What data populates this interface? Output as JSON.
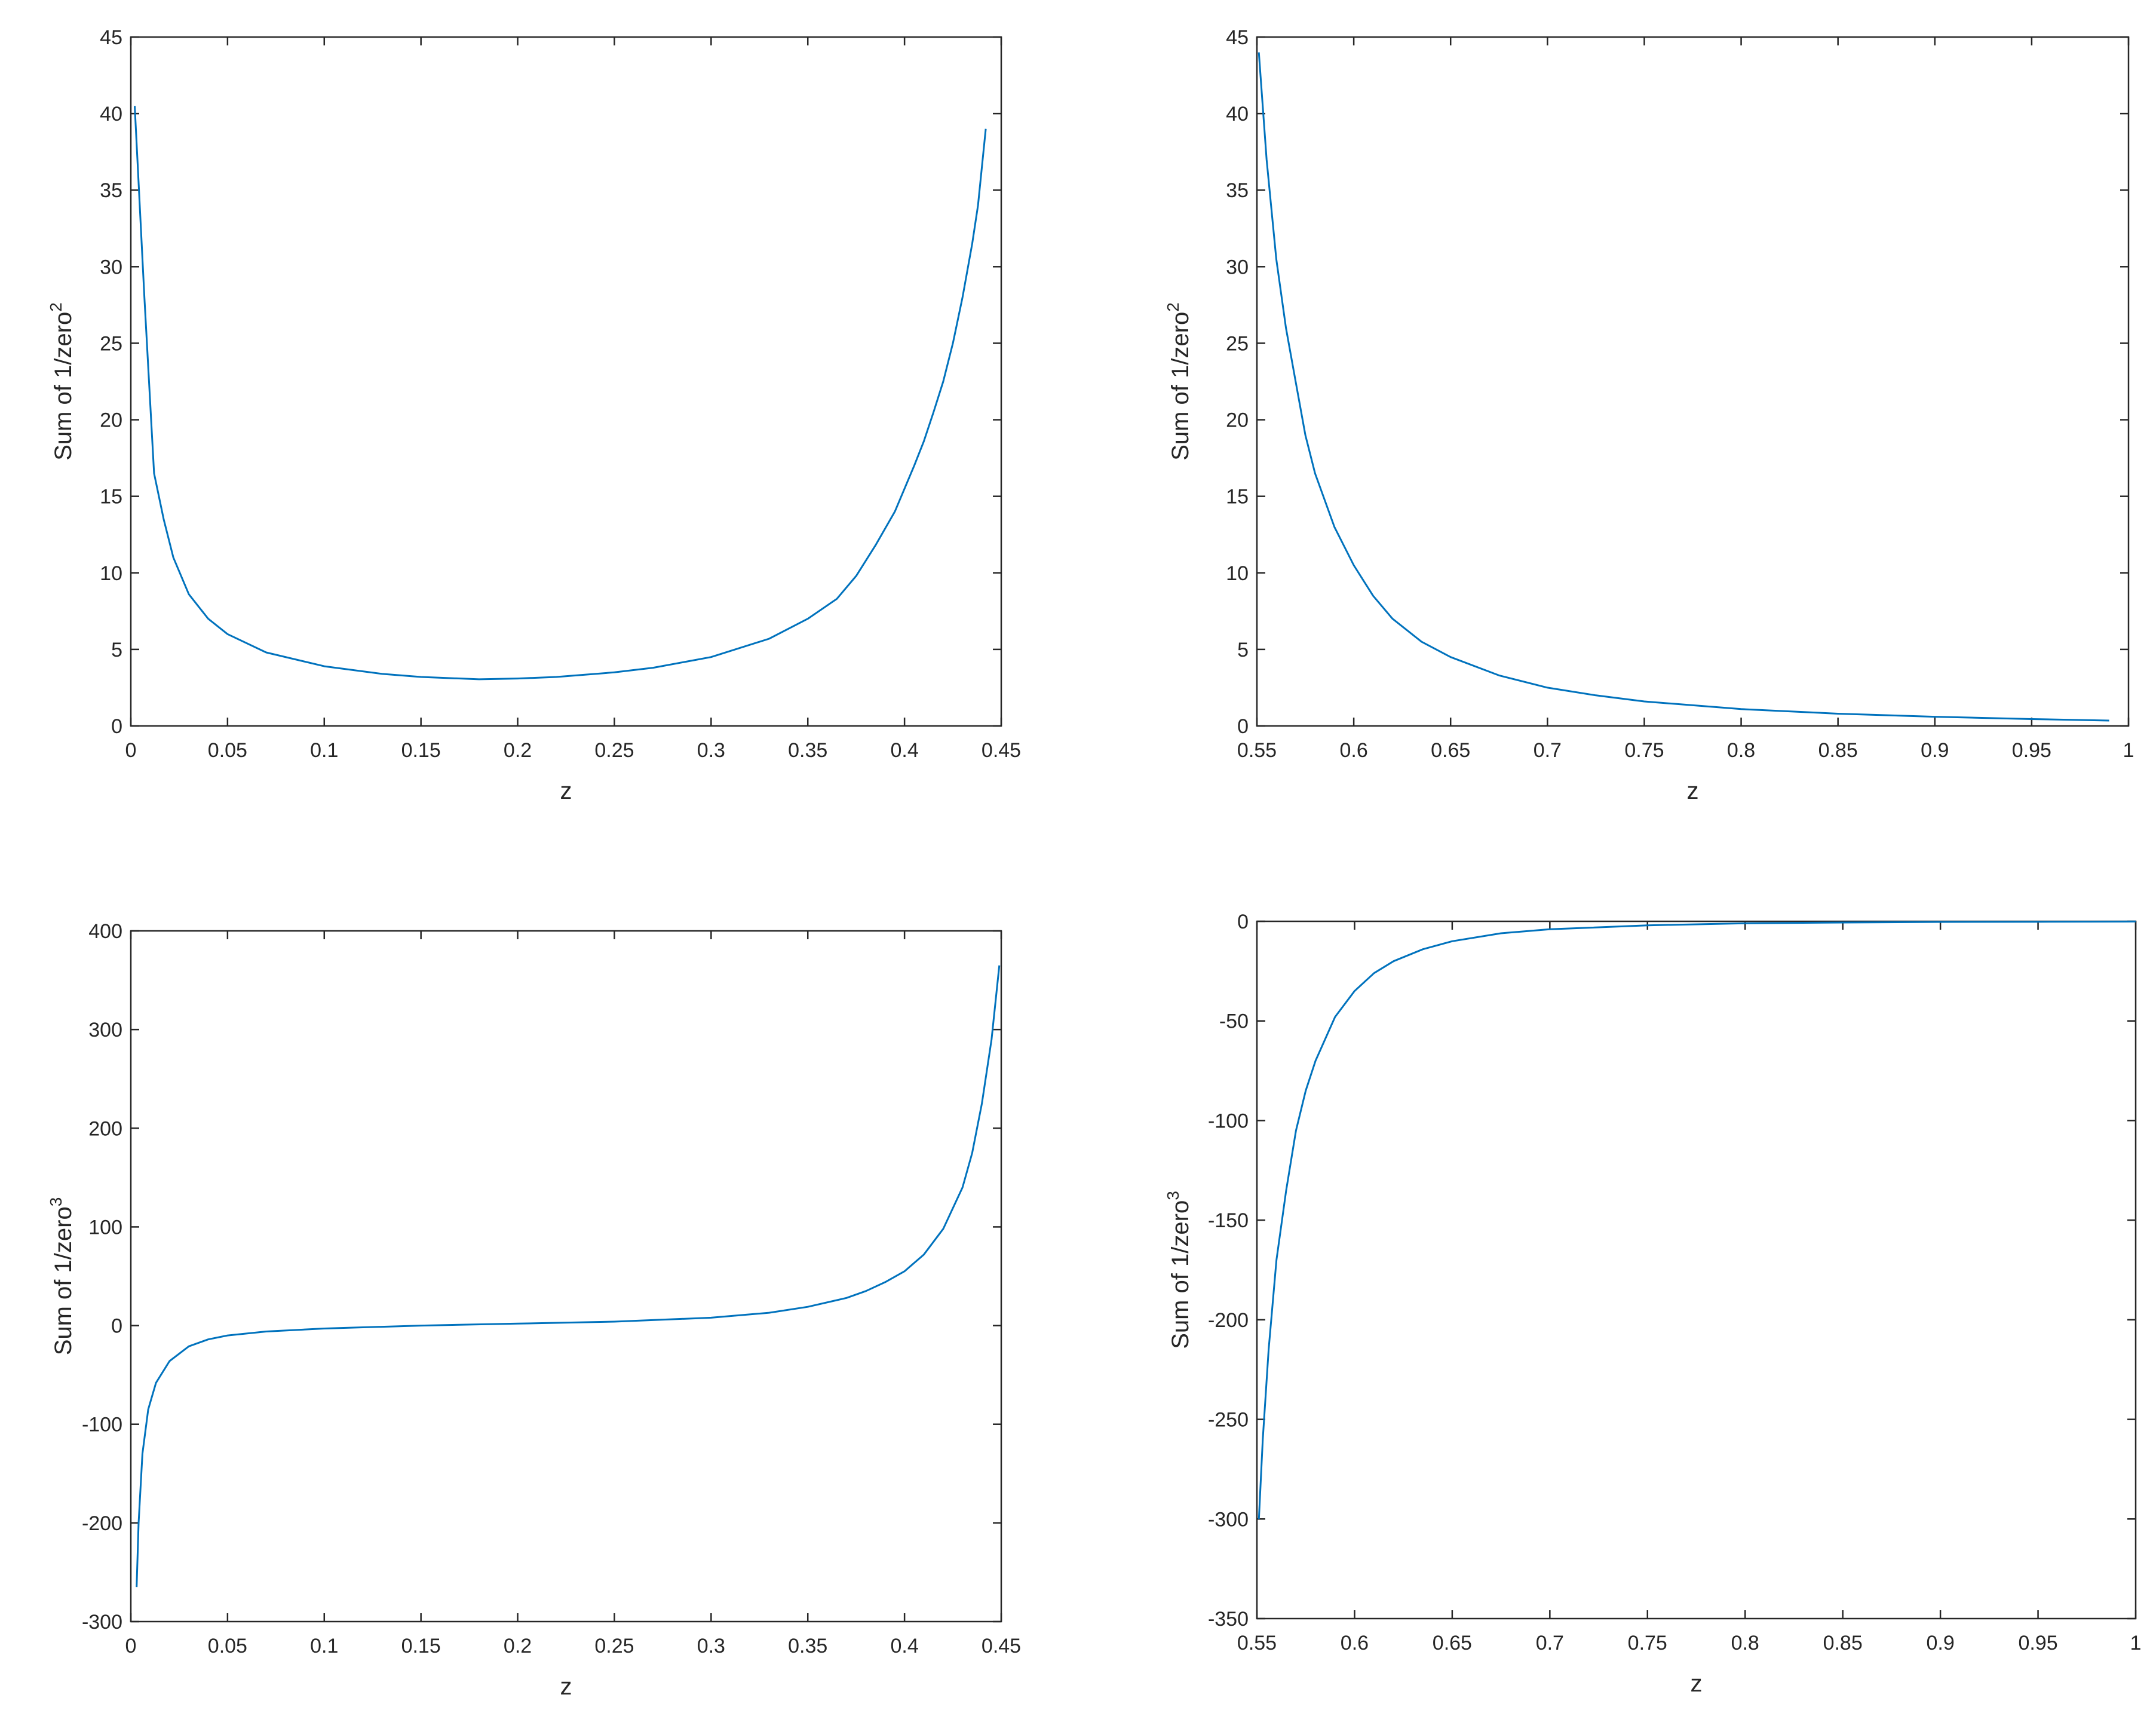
{
  "chart_data": [
    {
      "type": "line",
      "xlabel": "z",
      "ylabel": "Sum of 1/zero",
      "ylabel_sup": "2",
      "xlim": [
        0,
        0.45
      ],
      "ylim": [
        0,
        45
      ],
      "xticks": [
        "0",
        "0.05",
        "0.1",
        "0.15",
        "0.2",
        "0.25",
        "0.3",
        "0.35",
        "0.4",
        "0.45"
      ],
      "yticks": [
        "0",
        "5",
        "10",
        "15",
        "20",
        "25",
        "30",
        "35",
        "40",
        "45"
      ],
      "grid": false,
      "color": "#0072BD",
      "series": [
        {
          "x": [
            0.002,
            0.007,
            0.012,
            0.017,
            0.022,
            0.03,
            0.04,
            0.05,
            0.07,
            0.1,
            0.13,
            0.15,
            0.18,
            0.2,
            0.22,
            0.25,
            0.27,
            0.3,
            0.33,
            0.35,
            0.365,
            0.375,
            0.385,
            0.395,
            0.405,
            0.41,
            0.415,
            0.42,
            0.425,
            0.43,
            0.435,
            0.438,
            0.442
          ],
          "y": [
            40.5,
            28,
            16.5,
            13.5,
            11,
            8.6,
            7,
            6,
            4.8,
            3.9,
            3.4,
            3.2,
            3.05,
            3.1,
            3.2,
            3.5,
            3.8,
            4.5,
            5.7,
            7,
            8.3,
            9.8,
            11.8,
            14,
            17,
            18.6,
            20.5,
            22.5,
            25,
            28,
            31.5,
            34,
            39
          ]
        }
      ]
    },
    {
      "type": "line",
      "xlabel": "z",
      "ylabel": "Sum of 1/zero",
      "ylabel_sup": "2",
      "xlim": [
        0.55,
        1
      ],
      "ylim": [
        0,
        45
      ],
      "xticks": [
        "0.55",
        "0.6",
        "0.65",
        "0.7",
        "0.75",
        "0.8",
        "0.85",
        "0.9",
        "0.95",
        "1"
      ],
      "yticks": [
        "0",
        "5",
        "10",
        "15",
        "20",
        "25",
        "30",
        "35",
        "40",
        "45"
      ],
      "grid": false,
      "color": "#0072BD",
      "series": [
        {
          "x": [
            0.551,
            0.555,
            0.56,
            0.565,
            0.57,
            0.575,
            0.58,
            0.59,
            0.6,
            0.61,
            0.62,
            0.635,
            0.65,
            0.675,
            0.7,
            0.725,
            0.75,
            0.8,
            0.85,
            0.9,
            0.95,
            0.99
          ],
          "y": [
            44,
            37,
            30.5,
            26,
            22.5,
            19,
            16.5,
            13,
            10.5,
            8.5,
            7,
            5.5,
            4.5,
            3.3,
            2.5,
            2,
            1.6,
            1.1,
            0.8,
            0.6,
            0.45,
            0.35
          ]
        }
      ]
    },
    {
      "type": "line",
      "xlabel": "z",
      "ylabel": "Sum of 1/zero",
      "ylabel_sup": "3",
      "xlim": [
        0,
        0.45
      ],
      "ylim": [
        -300,
        400
      ],
      "xticks": [
        "0",
        "0.05",
        "0.1",
        "0.15",
        "0.2",
        "0.25",
        "0.3",
        "0.35",
        "0.4",
        "0.45"
      ],
      "yticks": [
        "-300",
        "-200",
        "-100",
        "0",
        "100",
        "200",
        "300",
        "400"
      ],
      "grid": false,
      "color": "#0072BD",
      "series": [
        {
          "x": [
            0.003,
            0.004,
            0.006,
            0.009,
            0.013,
            0.02,
            0.03,
            0.04,
            0.05,
            0.07,
            0.1,
            0.15,
            0.2,
            0.25,
            0.3,
            0.33,
            0.35,
            0.37,
            0.38,
            0.39,
            0.4,
            0.41,
            0.42,
            0.43,
            0.435,
            0.44,
            0.445,
            0.449
          ],
          "y": [
            -265,
            -200,
            -130,
            -85,
            -58,
            -36,
            -21,
            -14,
            -10,
            -6,
            -3,
            0,
            2,
            4,
            8,
            13,
            19,
            28,
            35,
            44,
            55,
            72,
            98,
            140,
            175,
            225,
            290,
            365
          ]
        }
      ]
    },
    {
      "type": "line",
      "xlabel": "z",
      "ylabel": "Sum of 1/zero",
      "ylabel_sup": "3",
      "xlim": [
        0.55,
        1
      ],
      "ylim": [
        -350,
        0
      ],
      "xticks": [
        "0.55",
        "0.6",
        "0.65",
        "0.7",
        "0.75",
        "0.8",
        "0.85",
        "0.9",
        "0.95",
        "1"
      ],
      "yticks": [
        "-350",
        "-300",
        "-250",
        "-200",
        "-150",
        "-100",
        "-50",
        "0"
      ],
      "grid": false,
      "color": "#0072BD",
      "series": [
        {
          "x": [
            0.551,
            0.553,
            0.556,
            0.56,
            0.565,
            0.57,
            0.575,
            0.58,
            0.59,
            0.6,
            0.61,
            0.62,
            0.635,
            0.65,
            0.675,
            0.7,
            0.75,
            0.8,
            0.85,
            0.9,
            0.95,
            1.0
          ],
          "y": [
            -300,
            -260,
            -215,
            -170,
            -135,
            -105,
            -85,
            -70,
            -48,
            -35,
            -26,
            -20,
            -14,
            -10,
            -6,
            -4,
            -2,
            -1,
            -0.6,
            -0.3,
            -0.2,
            -0.1
          ]
        }
      ]
    }
  ]
}
